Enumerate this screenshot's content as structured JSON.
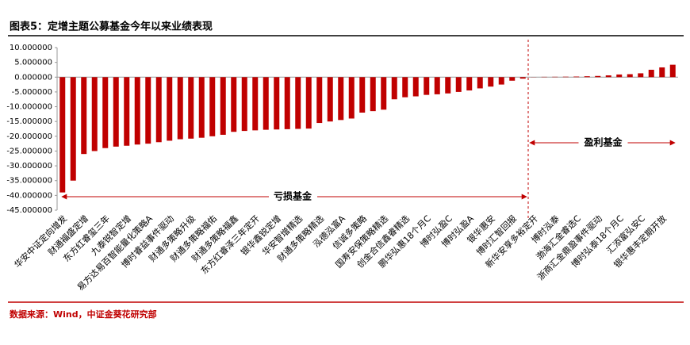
{
  "chart_data": {
    "type": "bar",
    "title": "图表5：定增主题公募基金今年以来业绩表现",
    "source": "数据来源：Wind，中证金葵花研究部",
    "annotations": [
      "亏损基金",
      "盈利基金"
    ],
    "color": "#c00000",
    "categories": [
      "华安中证定向增发",
      null,
      "财通福盛定增",
      null,
      "东方红睿玺三年",
      null,
      "九泰锐智定增",
      null,
      "易方达易百智能量化策略A",
      null,
      "博时睿益事件驱动",
      null,
      "财通多策略升级",
      null,
      "财通多策略福佑",
      null,
      "财通多策略福鑫",
      null,
      "东方红睿泽三年定开",
      null,
      "银华鑫锐定增",
      null,
      "华安智增精选",
      null,
      "财通多策略精选",
      null,
      "泓德泓富A",
      null,
      "信诚多策略",
      null,
      "国寿安保策略精选",
      null,
      "创金合信鑫睿精选",
      null,
      "鹏华弘惠18个月C",
      null,
      "博时弘盈C",
      null,
      "博时弘盈A",
      null,
      "银华惠安",
      null,
      "博时汇智回报",
      null,
      "新华安享多裕定开",
      null,
      "博时泓泰",
      null,
      "渤海汇金睿选C",
      null,
      "浙商汇金鼎盈事件驱动",
      null,
      "博时弘泰18个月C",
      null,
      "汇添富弘安C",
      null,
      "银华惠丰定期开放",
      null
    ],
    "values": [
      -39,
      -35,
      -26,
      -25,
      -24,
      -23.5,
      -23.2,
      -22.8,
      -22.5,
      -22,
      -21.5,
      -21,
      -20.8,
      -20.5,
      -20,
      -19.5,
      -18.5,
      -18.2,
      -18,
      -17.8,
      -17.7,
      -17.6,
      -17.5,
      -17.4,
      -15.5,
      -15,
      -14.5,
      -14,
      -12,
      -11.5,
      -11,
      -7.5,
      -6.8,
      -6.5,
      -6,
      -5.8,
      -5.5,
      -5,
      -4.5,
      -3.8,
      -3.2,
      -2.5,
      -1.2,
      -0.5,
      0.05,
      0.1,
      0.12,
      0.15,
      0.2,
      0.3,
      0.4,
      0.6,
      0.9,
      1.0,
      1.3,
      2.5,
      3.3,
      4.2
    ],
    "ylim": [
      -45,
      10
    ],
    "yticks": [
      {
        "value": 10,
        "label": "10.000000"
      },
      {
        "value": 5,
        "label": "5.000000"
      },
      {
        "value": 0,
        "label": "0.000000"
      },
      {
        "value": -5,
        "label": "-5.000000"
      },
      {
        "value": -10,
        "label": "-10.000000"
      },
      {
        "value": -15,
        "label": "-15.000000"
      },
      {
        "value": -20,
        "label": "-20.000000"
      },
      {
        "value": -25,
        "label": "-25.000000"
      },
      {
        "value": -30,
        "label": "-30.000000"
      },
      {
        "value": -35,
        "label": "-35.000000"
      },
      {
        "value": -40,
        "label": "-40.000000"
      },
      {
        "value": -45,
        "label": "-45.000000"
      }
    ],
    "grid": false
  }
}
